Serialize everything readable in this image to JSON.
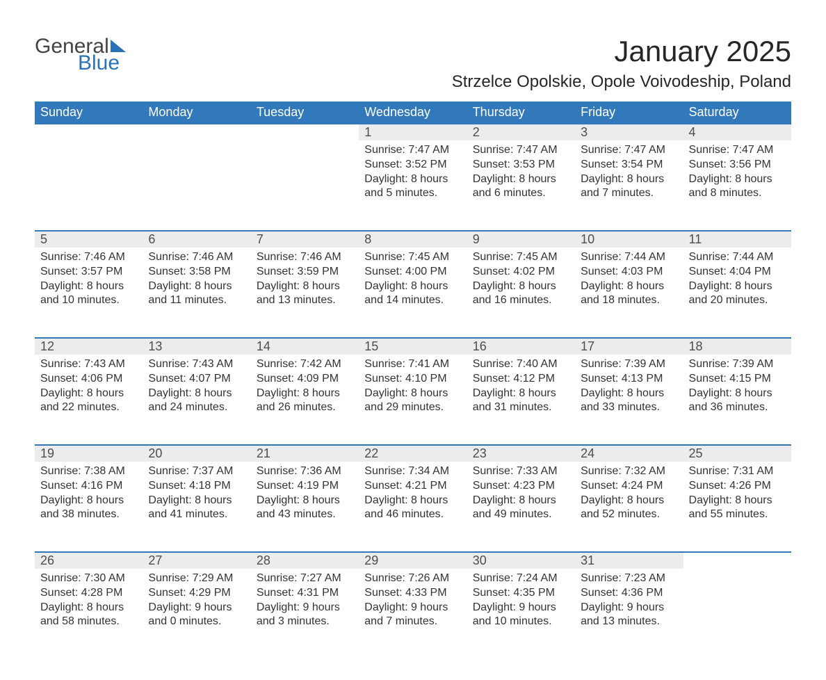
{
  "logo": {
    "text1": "General",
    "text2": "Blue"
  },
  "title": "January 2025",
  "location": "Strzelce Opolskie, Opole Voivodeship, Poland",
  "colors": {
    "header_bg": "#3279bb",
    "header_text": "#ffffff",
    "daynum_bg": "#ececec",
    "row_border": "#3279bb",
    "body_text": "#333333",
    "title_text": "#262626",
    "logo_gray": "#444444",
    "logo_blue": "#2a72b5"
  },
  "daynames": [
    "Sunday",
    "Monday",
    "Tuesday",
    "Wednesday",
    "Thursday",
    "Friday",
    "Saturday"
  ],
  "weeks": [
    [
      null,
      null,
      null,
      {
        "n": "1",
        "sr": "Sunrise: 7:47 AM",
        "ss": "Sunset: 3:52 PM",
        "d1": "Daylight: 8 hours",
        "d2": "and 5 minutes."
      },
      {
        "n": "2",
        "sr": "Sunrise: 7:47 AM",
        "ss": "Sunset: 3:53 PM",
        "d1": "Daylight: 8 hours",
        "d2": "and 6 minutes."
      },
      {
        "n": "3",
        "sr": "Sunrise: 7:47 AM",
        "ss": "Sunset: 3:54 PM",
        "d1": "Daylight: 8 hours",
        "d2": "and 7 minutes."
      },
      {
        "n": "4",
        "sr": "Sunrise: 7:47 AM",
        "ss": "Sunset: 3:56 PM",
        "d1": "Daylight: 8 hours",
        "d2": "and 8 minutes."
      }
    ],
    [
      {
        "n": "5",
        "sr": "Sunrise: 7:46 AM",
        "ss": "Sunset: 3:57 PM",
        "d1": "Daylight: 8 hours",
        "d2": "and 10 minutes."
      },
      {
        "n": "6",
        "sr": "Sunrise: 7:46 AM",
        "ss": "Sunset: 3:58 PM",
        "d1": "Daylight: 8 hours",
        "d2": "and 11 minutes."
      },
      {
        "n": "7",
        "sr": "Sunrise: 7:46 AM",
        "ss": "Sunset: 3:59 PM",
        "d1": "Daylight: 8 hours",
        "d2": "and 13 minutes."
      },
      {
        "n": "8",
        "sr": "Sunrise: 7:45 AM",
        "ss": "Sunset: 4:00 PM",
        "d1": "Daylight: 8 hours",
        "d2": "and 14 minutes."
      },
      {
        "n": "9",
        "sr": "Sunrise: 7:45 AM",
        "ss": "Sunset: 4:02 PM",
        "d1": "Daylight: 8 hours",
        "d2": "and 16 minutes."
      },
      {
        "n": "10",
        "sr": "Sunrise: 7:44 AM",
        "ss": "Sunset: 4:03 PM",
        "d1": "Daylight: 8 hours",
        "d2": "and 18 minutes."
      },
      {
        "n": "11",
        "sr": "Sunrise: 7:44 AM",
        "ss": "Sunset: 4:04 PM",
        "d1": "Daylight: 8 hours",
        "d2": "and 20 minutes."
      }
    ],
    [
      {
        "n": "12",
        "sr": "Sunrise: 7:43 AM",
        "ss": "Sunset: 4:06 PM",
        "d1": "Daylight: 8 hours",
        "d2": "and 22 minutes."
      },
      {
        "n": "13",
        "sr": "Sunrise: 7:43 AM",
        "ss": "Sunset: 4:07 PM",
        "d1": "Daylight: 8 hours",
        "d2": "and 24 minutes."
      },
      {
        "n": "14",
        "sr": "Sunrise: 7:42 AM",
        "ss": "Sunset: 4:09 PM",
        "d1": "Daylight: 8 hours",
        "d2": "and 26 minutes."
      },
      {
        "n": "15",
        "sr": "Sunrise: 7:41 AM",
        "ss": "Sunset: 4:10 PM",
        "d1": "Daylight: 8 hours",
        "d2": "and 29 minutes."
      },
      {
        "n": "16",
        "sr": "Sunrise: 7:40 AM",
        "ss": "Sunset: 4:12 PM",
        "d1": "Daylight: 8 hours",
        "d2": "and 31 minutes."
      },
      {
        "n": "17",
        "sr": "Sunrise: 7:39 AM",
        "ss": "Sunset: 4:13 PM",
        "d1": "Daylight: 8 hours",
        "d2": "and 33 minutes."
      },
      {
        "n": "18",
        "sr": "Sunrise: 7:39 AM",
        "ss": "Sunset: 4:15 PM",
        "d1": "Daylight: 8 hours",
        "d2": "and 36 minutes."
      }
    ],
    [
      {
        "n": "19",
        "sr": "Sunrise: 7:38 AM",
        "ss": "Sunset: 4:16 PM",
        "d1": "Daylight: 8 hours",
        "d2": "and 38 minutes."
      },
      {
        "n": "20",
        "sr": "Sunrise: 7:37 AM",
        "ss": "Sunset: 4:18 PM",
        "d1": "Daylight: 8 hours",
        "d2": "and 41 minutes."
      },
      {
        "n": "21",
        "sr": "Sunrise: 7:36 AM",
        "ss": "Sunset: 4:19 PM",
        "d1": "Daylight: 8 hours",
        "d2": "and 43 minutes."
      },
      {
        "n": "22",
        "sr": "Sunrise: 7:34 AM",
        "ss": "Sunset: 4:21 PM",
        "d1": "Daylight: 8 hours",
        "d2": "and 46 minutes."
      },
      {
        "n": "23",
        "sr": "Sunrise: 7:33 AM",
        "ss": "Sunset: 4:23 PM",
        "d1": "Daylight: 8 hours",
        "d2": "and 49 minutes."
      },
      {
        "n": "24",
        "sr": "Sunrise: 7:32 AM",
        "ss": "Sunset: 4:24 PM",
        "d1": "Daylight: 8 hours",
        "d2": "and 52 minutes."
      },
      {
        "n": "25",
        "sr": "Sunrise: 7:31 AM",
        "ss": "Sunset: 4:26 PM",
        "d1": "Daylight: 8 hours",
        "d2": "and 55 minutes."
      }
    ],
    [
      {
        "n": "26",
        "sr": "Sunrise: 7:30 AM",
        "ss": "Sunset: 4:28 PM",
        "d1": "Daylight: 8 hours",
        "d2": "and 58 minutes."
      },
      {
        "n": "27",
        "sr": "Sunrise: 7:29 AM",
        "ss": "Sunset: 4:29 PM",
        "d1": "Daylight: 9 hours",
        "d2": "and 0 minutes."
      },
      {
        "n": "28",
        "sr": "Sunrise: 7:27 AM",
        "ss": "Sunset: 4:31 PM",
        "d1": "Daylight: 9 hours",
        "d2": "and 3 minutes."
      },
      {
        "n": "29",
        "sr": "Sunrise: 7:26 AM",
        "ss": "Sunset: 4:33 PM",
        "d1": "Daylight: 9 hours",
        "d2": "and 7 minutes."
      },
      {
        "n": "30",
        "sr": "Sunrise: 7:24 AM",
        "ss": "Sunset: 4:35 PM",
        "d1": "Daylight: 9 hours",
        "d2": "and 10 minutes."
      },
      {
        "n": "31",
        "sr": "Sunrise: 7:23 AM",
        "ss": "Sunset: 4:36 PM",
        "d1": "Daylight: 9 hours",
        "d2": "and 13 minutes."
      },
      null
    ]
  ]
}
